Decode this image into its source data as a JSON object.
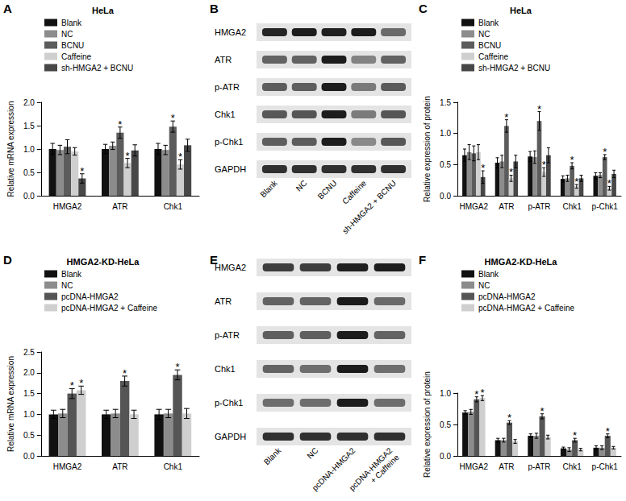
{
  "chart_data": [
    {
      "panel": "A",
      "type": "bar",
      "title": "HeLa",
      "y_label": "Relative mRNA expression",
      "categories": [
        "HMGA2",
        "ATR",
        "Chk1"
      ],
      "ylim": [
        0,
        2.0
      ],
      "yticks": [
        {
          "value": 0,
          "label": "0.0"
        },
        0.5,
        {
          "value": 1,
          "label": "1.0"
        },
        1.5,
        {
          "value": 2,
          "label": "2.0"
        }
      ],
      "grid": false,
      "legend": "upper left",
      "series": [
        {
          "name": "Blank",
          "color": "#111111",
          "values": [
            1.0,
            1.0,
            1.0
          ],
          "errors": [
            0.12,
            0.1,
            0.12
          ],
          "annotations": [
            null,
            null,
            null
          ]
        },
        {
          "name": "NC",
          "color": "#8c8c8c",
          "values": [
            0.98,
            1.07,
            0.98
          ],
          "errors": [
            0.1,
            0.08,
            0.1
          ],
          "annotations": [
            null,
            null,
            null
          ]
        },
        {
          "name": "BCNU",
          "color": "#5c5c5c",
          "values": [
            1.05,
            1.35,
            1.48
          ],
          "errors": [
            0.15,
            0.12,
            0.12
          ],
          "annotations": [
            null,
            "*",
            "*"
          ]
        },
        {
          "name": "Caffeine",
          "color": "#cfcfcf",
          "values": [
            0.95,
            0.7,
            0.67
          ],
          "errors": [
            0.08,
            0.1,
            0.1
          ],
          "annotations": [
            null,
            "*",
            "*"
          ]
        },
        {
          "name": "sh-HMGA2 + BCNU",
          "color": "#474747",
          "values": [
            0.37,
            0.97,
            1.08
          ],
          "errors": [
            0.1,
            0.12,
            0.13
          ],
          "annotations": [
            "*",
            null,
            null
          ]
        }
      ]
    },
    {
      "panel": "C",
      "type": "bar",
      "title": "HeLa",
      "y_label": "Relative expression of protein",
      "categories": [
        "HMGA2",
        "ATR",
        "p-ATR",
        "Chk1",
        "p-Chk1"
      ],
      "ylim": [
        0,
        1.5
      ],
      "yticks": [
        {
          "value": 0,
          "label": "0.0"
        },
        0.5,
        {
          "value": 1,
          "label": "1.0"
        },
        1.5
      ],
      "grid": false,
      "legend": "upper left",
      "series": [
        {
          "name": "Blank",
          "color": "#111111",
          "values": [
            0.65,
            0.53,
            0.63,
            0.27,
            0.32
          ],
          "errors": [
            0.1,
            0.08,
            0.08,
            0.05,
            0.05
          ],
          "annotations": [
            null,
            null,
            null,
            null,
            null
          ]
        },
        {
          "name": "NC",
          "color": "#8c8c8c",
          "values": [
            0.7,
            0.55,
            0.62,
            0.28,
            0.33
          ],
          "errors": [
            0.12,
            0.1,
            0.1,
            0.05,
            0.04
          ],
          "annotations": [
            null,
            null,
            null,
            null,
            null
          ]
        },
        {
          "name": "BCNU",
          "color": "#5c5c5c",
          "values": [
            0.68,
            1.12,
            1.2,
            0.48,
            0.62
          ],
          "errors": [
            0.12,
            0.1,
            0.15,
            0.05,
            0.04
          ],
          "annotations": [
            null,
            "*",
            "*",
            "*",
            "*"
          ]
        },
        {
          "name": "Caffeine",
          "color": "#cfcfcf",
          "values": [
            0.7,
            0.28,
            0.38,
            0.15,
            0.12
          ],
          "errors": [
            0.12,
            0.05,
            0.07,
            0.03,
            0.03
          ],
          "annotations": [
            null,
            "*",
            "*",
            "*",
            "*"
          ]
        },
        {
          "name": "sh-HMGA2 + BCNU",
          "color": "#474747",
          "values": [
            0.3,
            0.55,
            0.65,
            0.28,
            0.35
          ],
          "errors": [
            0.1,
            0.1,
            0.12,
            0.05,
            0.06
          ],
          "annotations": [
            "*",
            null,
            null,
            null,
            null
          ]
        }
      ]
    },
    {
      "panel": "D",
      "type": "bar",
      "title": "HMGA2-KD-HeLa",
      "y_label": "Relative mRNA expression",
      "categories": [
        "HMGA2",
        "ATR",
        "Chk1"
      ],
      "ylim": [
        0,
        2.5
      ],
      "yticks": [
        {
          "value": 0,
          "label": "0.0"
        },
        0.5,
        {
          "value": 1,
          "label": "1.0"
        },
        1.5,
        {
          "value": 2,
          "label": "2.0"
        },
        2.5
      ],
      "grid": false,
      "legend": "upper left",
      "series": [
        {
          "name": "Blank",
          "color": "#111111",
          "values": [
            1.0,
            1.0,
            1.0
          ],
          "errors": [
            0.1,
            0.1,
            0.12
          ],
          "annotations": [
            null,
            null,
            null
          ]
        },
        {
          "name": "NC",
          "color": "#8c8c8c",
          "values": [
            1.02,
            1.02,
            1.02
          ],
          "errors": [
            0.1,
            0.1,
            0.1
          ],
          "annotations": [
            null,
            null,
            null
          ]
        },
        {
          "name": "pcDNA-HMGA2",
          "color": "#555555",
          "values": [
            1.5,
            1.8,
            1.95
          ],
          "errors": [
            0.12,
            0.12,
            0.12
          ],
          "annotations": [
            "*",
            "*",
            "*"
          ]
        },
        {
          "name": "pcDNA-HMGA2 + Caffeine",
          "color": "#cfcfcf",
          "values": [
            1.58,
            1.0,
            1.02
          ],
          "errors": [
            0.1,
            0.1,
            0.12
          ],
          "annotations": [
            "*",
            null,
            null
          ]
        }
      ]
    },
    {
      "panel": "F",
      "type": "bar",
      "title": "HMGA2-KD-HeLa",
      "y_label": "Relative expression of protein",
      "categories": [
        "HMGA2",
        "ATR",
        "p-ATR",
        "Chk1",
        "p-Chk1"
      ],
      "ylim": [
        0,
        1.0
      ],
      "yticks": [
        {
          "value": 0,
          "label": "0.0"
        },
        0.5,
        {
          "value": 1,
          "label": "1.0"
        }
      ],
      "grid": false,
      "legend": "upper left",
      "series": [
        {
          "name": "Blank",
          "color": "#111111",
          "values": [
            0.69,
            0.25,
            0.32,
            0.12,
            0.13
          ],
          "errors": [
            0.03,
            0.03,
            0.03,
            0.02,
            0.03
          ],
          "annotations": [
            null,
            null,
            null,
            null,
            null
          ]
        },
        {
          "name": "NC",
          "color": "#8c8c8c",
          "values": [
            0.7,
            0.25,
            0.32,
            0.1,
            0.13
          ],
          "errors": [
            0.04,
            0.03,
            0.04,
            0.03,
            0.03
          ],
          "annotations": [
            null,
            null,
            null,
            null,
            null
          ]
        },
        {
          "name": "pcDNA-HMGA2",
          "color": "#555555",
          "values": [
            0.9,
            0.53,
            0.63,
            0.25,
            0.32
          ],
          "errors": [
            0.04,
            0.03,
            0.04,
            0.03,
            0.03
          ],
          "annotations": [
            "*",
            "*",
            "*",
            "*",
            "*"
          ]
        },
        {
          "name": "pcDNA-HMGA2 + Caffeine",
          "color": "#cfcfcf",
          "values": [
            0.92,
            0.23,
            0.3,
            0.1,
            0.13
          ],
          "errors": [
            0.04,
            0.03,
            0.03,
            0.02,
            0.02
          ],
          "annotations": [
            "*",
            null,
            null,
            null,
            null
          ]
        }
      ]
    }
  ],
  "blots": [
    {
      "panel": "B",
      "rows": [
        "HMGA2",
        "ATR",
        "p-ATR",
        "Chk1",
        "p-Chk1",
        "GAPDH"
      ],
      "lanes": [
        "Blank",
        "NC",
        "BCNU",
        "Caffeine",
        "sh-HMGA2 + BCNU"
      ]
    },
    {
      "panel": "E",
      "rows": [
        "HMGA2",
        "ATR",
        "p-ATR",
        "Chk1",
        "p-Chk1",
        "GAPDH"
      ],
      "lanes": [
        "Blank",
        "NC",
        "pcDNA-HMGA2",
        "pcDNA-HMGA2 + Caffeine"
      ]
    }
  ]
}
